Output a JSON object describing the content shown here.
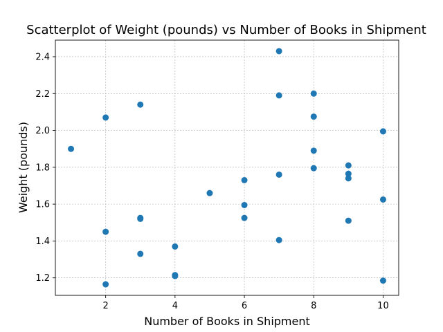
{
  "chart_data": {
    "type": "scatter",
    "title": "Scatterplot of Weight (pounds) vs Number of Books in Shipment",
    "xlabel": "Number of Books in Shipment",
    "ylabel": "Weight (pounds)",
    "xlim": [
      0.55,
      10.45
    ],
    "ylim": [
      1.105,
      2.49
    ],
    "xticks": [
      2,
      4,
      6,
      8,
      10
    ],
    "yticks": [
      1.2,
      1.4,
      1.6,
      1.8,
      2.0,
      2.2,
      2.4
    ],
    "grid": true,
    "marker_color": "#1f77b4",
    "points": [
      {
        "x": 1,
        "y": 1.9
      },
      {
        "x": 2,
        "y": 2.07
      },
      {
        "x": 2,
        "y": 1.45
      },
      {
        "x": 2,
        "y": 1.165
      },
      {
        "x": 3,
        "y": 2.14
      },
      {
        "x": 3,
        "y": 1.52
      },
      {
        "x": 3,
        "y": 1.525
      },
      {
        "x": 3,
        "y": 1.33
      },
      {
        "x": 4,
        "y": 1.37
      },
      {
        "x": 4,
        "y": 1.215
      },
      {
        "x": 4,
        "y": 1.21
      },
      {
        "x": 5,
        "y": 1.66
      },
      {
        "x": 6,
        "y": 1.73
      },
      {
        "x": 6,
        "y": 1.595
      },
      {
        "x": 6,
        "y": 1.525
      },
      {
        "x": 7,
        "y": 2.43
      },
      {
        "x": 7,
        "y": 2.19
      },
      {
        "x": 7,
        "y": 1.76
      },
      {
        "x": 7,
        "y": 1.405
      },
      {
        "x": 8,
        "y": 2.2
      },
      {
        "x": 8,
        "y": 2.075
      },
      {
        "x": 8,
        "y": 1.89
      },
      {
        "x": 8,
        "y": 1.795
      },
      {
        "x": 9,
        "y": 1.81
      },
      {
        "x": 9,
        "y": 1.765
      },
      {
        "x": 9,
        "y": 1.74
      },
      {
        "x": 9,
        "y": 1.51
      },
      {
        "x": 10,
        "y": 1.995
      },
      {
        "x": 10,
        "y": 1.625
      },
      {
        "x": 10,
        "y": 1.185
      }
    ]
  }
}
